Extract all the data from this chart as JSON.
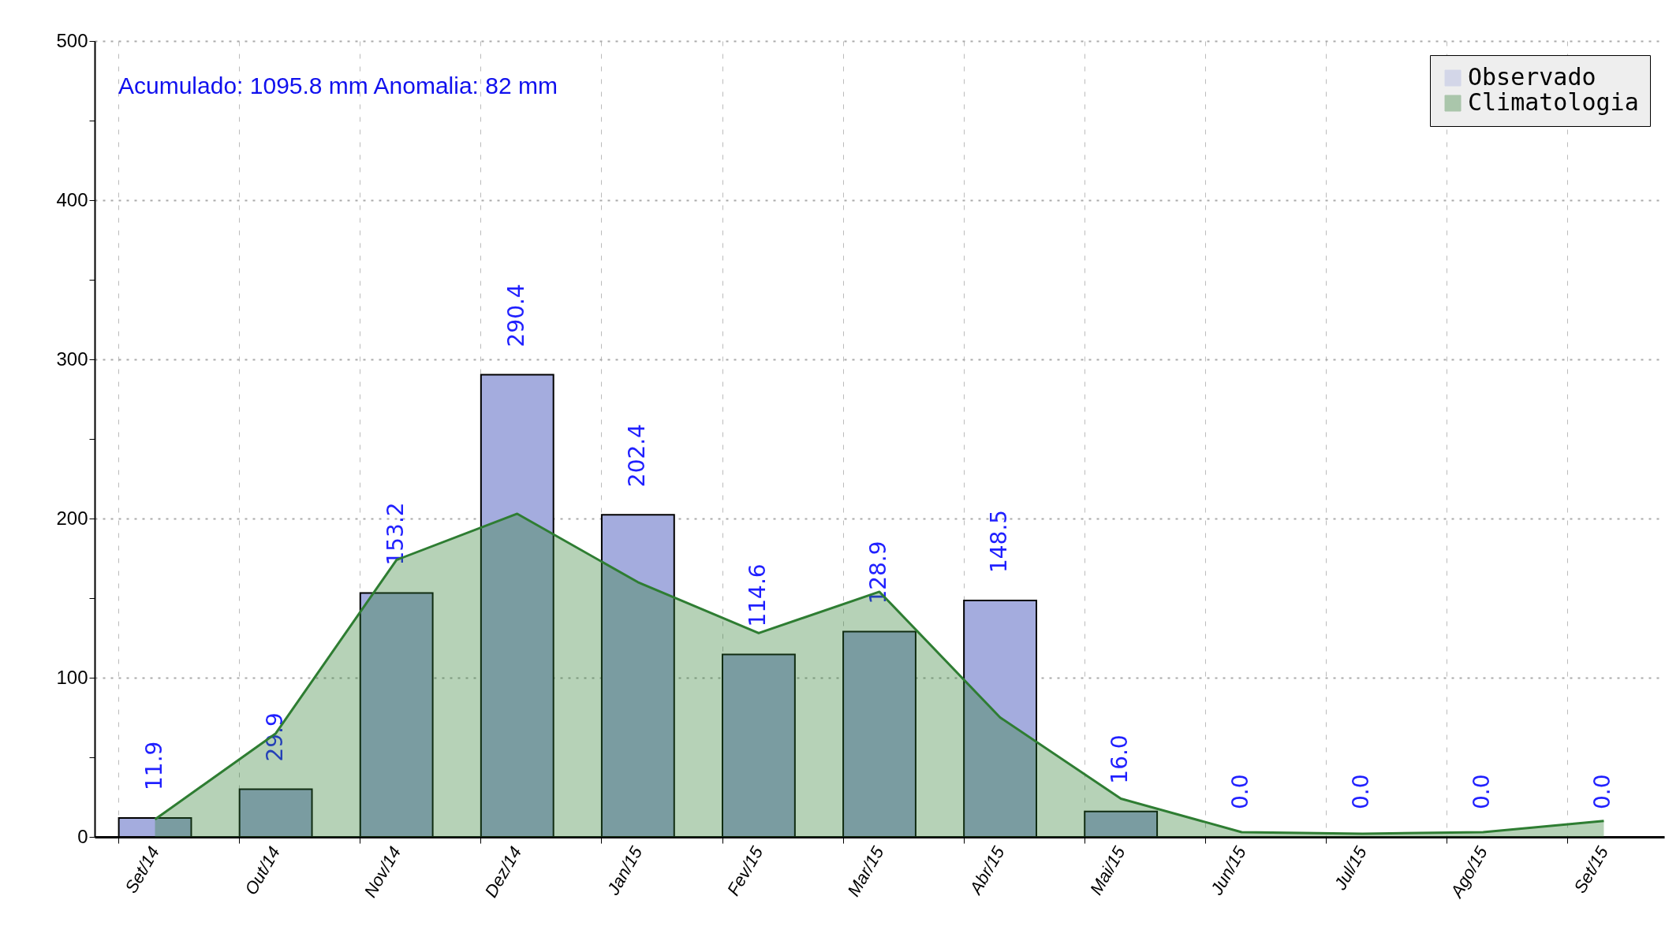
{
  "chart_data": {
    "type": "bar",
    "annotations": [
      "Acumulado: 1095.8 mm Anomalia: 82 mm"
    ],
    "categories": [
      "Set/14",
      "Out/14",
      "Nov/14",
      "Dez/14",
      "Jan/15",
      "Fev/15",
      "Mar/15",
      "Abr/15",
      "Mai/15",
      "Jun/15",
      "Jul/15",
      "Ago/15",
      "Set/15"
    ],
    "series": [
      {
        "name": "Observado",
        "color": "#a4acde",
        "values": [
          11.9,
          29.9,
          153.2,
          290.4,
          202.4,
          114.6,
          128.9,
          148.5,
          16.0,
          0.0,
          0.0,
          0.0,
          0.0
        ],
        "value_labels": [
          "11.9",
          "29.9",
          "153.2",
          "290.4",
          "202.4",
          "114.6",
          "128.9",
          "148.5",
          "16.0",
          "0.0",
          "0.0",
          "0.0",
          "0.0"
        ]
      },
      {
        "name": "Climatologia",
        "type": "area",
        "color": "#2e7d32",
        "values": [
          11,
          65,
          174,
          203,
          160,
          128,
          154,
          75,
          24,
          3,
          2,
          3,
          10
        ]
      }
    ],
    "ylim": [
      0,
      500
    ],
    "yticks": [
      0,
      {
        "value": 50,
        "label": null
      },
      100,
      {
        "value": 150,
        "label": null
      },
      200,
      {
        "value": 250,
        "label": null
      },
      300,
      {
        "value": 350,
        "label": null
      },
      400,
      {
        "value": 450,
        "label": null
      },
      500
    ],
    "grid": true,
    "legend": "top right"
  }
}
